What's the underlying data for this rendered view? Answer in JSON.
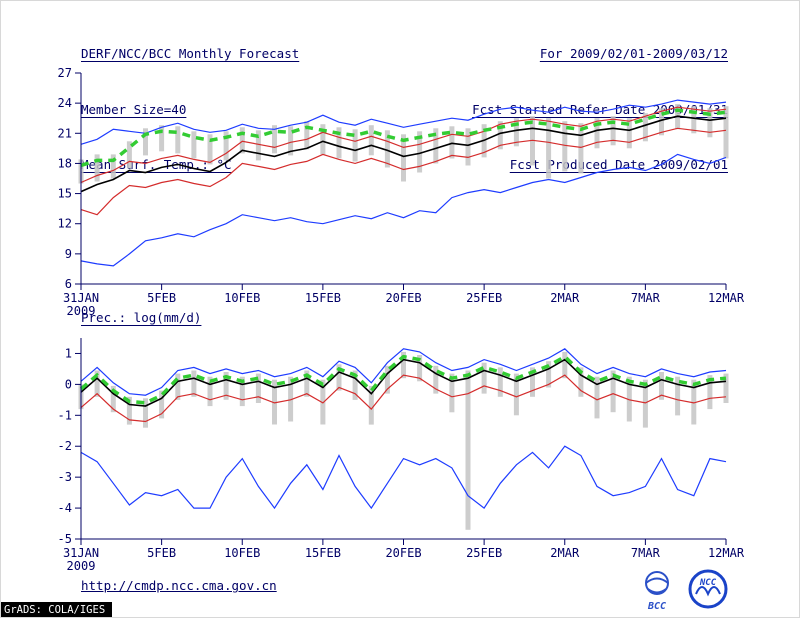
{
  "header": {
    "title": "DERF/NCC/BCC Monthly Forecast",
    "member_size": "Member Size=40",
    "for_range": "For 2009/02/01-2009/03/12",
    "fcst_started": "Fcst Started Refer Date 2009/01/31",
    "fcst_produced": "Fcst Produced Date 2009/02/01"
  },
  "footer": {
    "url": "http://cmdp.ncc.cma.gov.cn",
    "grads_credit": "GrADS: COLA/IGES",
    "logos": [
      {
        "name": "bcc-logo",
        "label": "BCC"
      },
      {
        "name": "ncc-logo",
        "label": "NCC"
      }
    ]
  },
  "colors": {
    "text": "#000066",
    "ensemble_envelope": "#1e3cff",
    "std_band": "#d42c2c",
    "ensemble_mean": "#000000",
    "observation": "#33cc33",
    "spread_bar": "#c4c4c4"
  },
  "chart_data": [
    {
      "type": "line",
      "title": "Mean Surf. Temp.: °C",
      "n_days": 41,
      "x_ticks": [
        {
          "day": 0,
          "label": "31JAN",
          "sublabel": "2009"
        },
        {
          "day": 5,
          "label": "5FEB"
        },
        {
          "day": 10,
          "label": "10FEB"
        },
        {
          "day": 15,
          "label": "15FEB"
        },
        {
          "day": 20,
          "label": "20FEB"
        },
        {
          "day": 25,
          "label": "25FEB"
        },
        {
          "day": 30,
          "label": "2MAR"
        },
        {
          "day": 35,
          "label": "7MAR"
        },
        {
          "day": 40,
          "label": "12MAR"
        }
      ],
      "ylim": [
        6,
        27
      ],
      "yticks": [
        27,
        24,
        21,
        18,
        15,
        12,
        9,
        6
      ],
      "series": [
        {
          "name": "ensemble-max",
          "color": "#1e3cff",
          "width": 1.2,
          "values": [
            19.9,
            20.4,
            21.4,
            21.2,
            21.0,
            21.6,
            22.0,
            21.4,
            21.1,
            21.3,
            21.9,
            21.5,
            21.4,
            21.8,
            22.1,
            22.8,
            22.1,
            21.8,
            22.4,
            22.0,
            21.6,
            21.9,
            22.2,
            22.5,
            22.3,
            22.9,
            23.4,
            23.6,
            23.3,
            23.1,
            23.6,
            23.2,
            23.1,
            23.4,
            23.8,
            23.6,
            23.9,
            24.3,
            24.1,
            23.9,
            24.1
          ]
        },
        {
          "name": "ensemble-min",
          "color": "#1e3cff",
          "width": 1.2,
          "values": [
            8.3,
            8.0,
            7.8,
            9.0,
            10.3,
            10.6,
            11.0,
            10.7,
            11.4,
            12.0,
            12.9,
            12.6,
            12.3,
            12.6,
            12.2,
            12.0,
            12.4,
            12.8,
            12.5,
            13.1,
            12.6,
            13.3,
            13.1,
            14.6,
            15.1,
            15.4,
            15.1,
            15.6,
            16.1,
            16.4,
            16.1,
            16.6,
            17.1,
            17.4,
            17.6,
            17.3,
            17.9,
            18.9,
            18.4,
            18.0,
            18.6
          ]
        },
        {
          "name": "mean-plus-sd",
          "color": "#d42c2c",
          "width": 1.2,
          "values": [
            16.1,
            16.8,
            17.3,
            18.2,
            18.0,
            18.5,
            18.8,
            18.4,
            18.1,
            19.0,
            20.2,
            19.9,
            19.6,
            20.1,
            20.4,
            21.1,
            20.6,
            20.2,
            20.7,
            20.2,
            19.6,
            19.9,
            20.4,
            20.9,
            20.7,
            21.2,
            21.9,
            22.2,
            22.4,
            22.2,
            21.9,
            21.7,
            22.2,
            22.4,
            22.2,
            22.7,
            23.2,
            23.6,
            23.4,
            23.2,
            23.4
          ]
        },
        {
          "name": "mean-minus-sd",
          "color": "#d42c2c",
          "width": 1.2,
          "values": [
            13.4,
            12.9,
            14.6,
            15.8,
            15.6,
            16.1,
            16.4,
            16.0,
            15.7,
            16.6,
            18.0,
            17.7,
            17.4,
            17.9,
            18.2,
            18.9,
            18.4,
            18.0,
            18.5,
            18.0,
            17.4,
            17.7,
            18.2,
            18.8,
            18.6,
            19.1,
            19.8,
            20.1,
            20.3,
            20.1,
            19.8,
            19.6,
            20.1,
            20.3,
            20.1,
            20.6,
            21.1,
            21.5,
            21.3,
            21.1,
            21.3
          ]
        },
        {
          "name": "ensemble-mean",
          "color": "#000000",
          "width": 1.6,
          "values": [
            15.2,
            15.9,
            16.4,
            17.3,
            17.1,
            17.6,
            17.9,
            17.5,
            17.2,
            18.1,
            19.3,
            19.0,
            18.7,
            19.2,
            19.5,
            20.2,
            19.7,
            19.3,
            19.8,
            19.3,
            18.7,
            19.0,
            19.5,
            20.0,
            19.8,
            20.3,
            21.0,
            21.3,
            21.5,
            21.3,
            21.0,
            20.8,
            21.3,
            21.5,
            21.3,
            21.8,
            22.3,
            22.7,
            22.5,
            22.3,
            22.5
          ]
        },
        {
          "name": "observation",
          "color": "#33cc33",
          "width": 3.5,
          "dash": "8,6",
          "values": [
            17.8,
            18.3,
            18.3,
            19.6,
            20.9,
            21.2,
            21.1,
            20.6,
            20.3,
            20.6,
            21.0,
            20.7,
            21.2,
            21.1,
            21.6,
            21.3,
            21.0,
            20.8,
            21.2,
            20.7,
            20.3,
            20.6,
            20.9,
            21.1,
            20.9,
            21.3,
            21.6,
            21.9,
            22.1,
            21.9,
            21.6,
            21.4,
            21.9,
            22.1,
            21.9,
            22.4,
            22.9,
            23.3,
            23.1,
            22.9,
            23.1
          ]
        }
      ],
      "bars": {
        "name": "ensemble-spread-bar",
        "color": "#c4c4c4",
        "high": [
          18.4,
          18.9,
          18.9,
          20.2,
          21.5,
          21.8,
          21.7,
          21.2,
          20.9,
          21.2,
          21.6,
          21.3,
          21.8,
          21.7,
          22.2,
          21.9,
          21.6,
          21.4,
          21.8,
          21.3,
          20.9,
          21.2,
          21.5,
          21.7,
          21.5,
          21.9,
          22.2,
          22.5,
          22.7,
          22.5,
          22.2,
          22.0,
          22.5,
          22.7,
          22.5,
          23.0,
          23.5,
          23.9,
          23.7,
          23.5,
          23.7
        ],
        "low": [
          16.0,
          16.2,
          16.5,
          17.5,
          18.8,
          19.2,
          19.0,
          18.5,
          17.9,
          18.3,
          19.0,
          18.3,
          19.0,
          18.8,
          19.4,
          18.9,
          18.5,
          18.2,
          18.8,
          17.6,
          16.2,
          17.1,
          18.0,
          18.5,
          17.8,
          18.6,
          19.4,
          19.7,
          17.8,
          16.5,
          17.2,
          17.0,
          19.5,
          19.8,
          19.5,
          20.2,
          20.8,
          21.4,
          21.0,
          20.6,
          18.5
        ]
      }
    },
    {
      "type": "line",
      "title": "Prec.: log(mm/d)",
      "n_days": 41,
      "x_ticks": [
        {
          "day": 0,
          "label": "31JAN",
          "sublabel": "2009"
        },
        {
          "day": 5,
          "label": "5FEB"
        },
        {
          "day": 10,
          "label": "10FEB"
        },
        {
          "day": 15,
          "label": "15FEB"
        },
        {
          "day": 20,
          "label": "20FEB"
        },
        {
          "day": 25,
          "label": "25FEB"
        },
        {
          "day": 30,
          "label": "2MAR"
        },
        {
          "day": 35,
          "label": "7MAR"
        },
        {
          "day": 40,
          "label": "12MAR"
        }
      ],
      "ylim": [
        -5,
        1.5
      ],
      "yticks": [
        1,
        0,
        -1,
        -2,
        -3,
        -4,
        -5
      ],
      "series": [
        {
          "name": "ensemble-upper",
          "color": "#1e3cff",
          "width": 1.2,
          "values": [
            0.1,
            0.55,
            0.05,
            -0.3,
            -0.35,
            -0.1,
            0.45,
            0.55,
            0.35,
            0.5,
            0.35,
            0.45,
            0.25,
            0.35,
            0.55,
            0.25,
            0.75,
            0.55,
            0.05,
            0.7,
            1.15,
            1.05,
            0.7,
            0.45,
            0.55,
            0.8,
            0.65,
            0.45,
            0.65,
            0.85,
            1.15,
            0.65,
            0.35,
            0.55,
            0.35,
            0.25,
            0.5,
            0.35,
            0.25,
            0.4,
            0.45
          ]
        },
        {
          "name": "ensemble-lower",
          "color": "#1e3cff",
          "width": 1.2,
          "values": [
            -2.2,
            -2.5,
            -3.2,
            -3.9,
            -3.5,
            -3.6,
            -3.4,
            -4.0,
            -4.0,
            -3.0,
            -2.4,
            -3.3,
            -4.0,
            -3.2,
            -2.6,
            -3.4,
            -2.3,
            -3.3,
            -4.0,
            -3.2,
            -2.4,
            -2.6,
            -2.4,
            -2.7,
            -3.6,
            -4.0,
            -3.2,
            -2.6,
            -2.2,
            -2.7,
            -2.0,
            -2.3,
            -3.3,
            -3.6,
            -3.5,
            -3.3,
            -2.4,
            -3.4,
            -3.6,
            -2.4,
            -2.5
          ]
        },
        {
          "name": "mean-minus-sd",
          "color": "#d42c2c",
          "width": 1.2,
          "values": [
            -0.75,
            -0.3,
            -0.8,
            -1.15,
            -1.2,
            -0.95,
            -0.4,
            -0.3,
            -0.5,
            -0.35,
            -0.5,
            -0.4,
            -0.6,
            -0.5,
            -0.3,
            -0.6,
            -0.1,
            -0.3,
            -0.8,
            -0.15,
            0.3,
            0.2,
            -0.15,
            -0.4,
            -0.3,
            -0.05,
            -0.2,
            -0.4,
            -0.2,
            0.0,
            0.3,
            -0.2,
            -0.5,
            -0.3,
            -0.5,
            -0.6,
            -0.35,
            -0.5,
            -0.6,
            -0.45,
            -0.4
          ]
        },
        {
          "name": "ensemble-mean",
          "color": "#000000",
          "width": 1.6,
          "values": [
            -0.25,
            0.2,
            -0.3,
            -0.65,
            -0.7,
            -0.45,
            0.1,
            0.2,
            0.0,
            0.15,
            0.0,
            0.1,
            -0.1,
            0.0,
            0.2,
            -0.1,
            0.4,
            0.2,
            -0.3,
            0.35,
            0.8,
            0.7,
            0.35,
            0.1,
            0.2,
            0.45,
            0.3,
            0.1,
            0.3,
            0.5,
            0.8,
            0.3,
            0.0,
            0.2,
            0.0,
            -0.1,
            0.15,
            0.0,
            -0.1,
            0.05,
            0.1
          ]
        },
        {
          "name": "observation",
          "color": "#33cc33",
          "width": 3.5,
          "dash": "8,6",
          "values": [
            -0.15,
            0.3,
            -0.2,
            -0.55,
            -0.6,
            -0.35,
            0.2,
            0.3,
            0.1,
            0.25,
            0.1,
            0.2,
            0.0,
            0.1,
            0.3,
            0.0,
            0.5,
            0.3,
            -0.2,
            0.45,
            0.9,
            0.8,
            0.45,
            0.2,
            0.3,
            0.55,
            0.4,
            0.2,
            0.4,
            0.6,
            0.9,
            0.4,
            0.1,
            0.3,
            0.1,
            0.0,
            0.25,
            0.1,
            0.0,
            0.15,
            0.2
          ]
        }
      ],
      "bars": {
        "name": "ensemble-spread-bar",
        "color": "#c4c4c4",
        "high": [
          0.0,
          0.45,
          -0.05,
          -0.4,
          -0.45,
          -0.2,
          0.35,
          0.45,
          0.25,
          0.4,
          0.25,
          0.35,
          0.15,
          0.25,
          0.45,
          0.15,
          0.65,
          0.45,
          -0.05,
          0.6,
          1.05,
          0.95,
          0.6,
          0.35,
          0.45,
          0.7,
          0.55,
          0.35,
          0.55,
          0.75,
          1.05,
          0.55,
          0.25,
          0.45,
          0.25,
          0.15,
          0.4,
          0.25,
          0.15,
          0.3,
          0.35
        ],
        "low": [
          -0.8,
          -0.4,
          -0.9,
          -1.3,
          -1.4,
          -1.1,
          -0.5,
          -0.4,
          -0.7,
          -0.5,
          -0.7,
          -0.6,
          -1.3,
          -1.2,
          -0.4,
          -1.3,
          -0.2,
          -0.5,
          -1.3,
          -0.3,
          0.2,
          0.1,
          -0.3,
          -0.9,
          -4.7,
          -0.3,
          -0.4,
          -1.0,
          -0.4,
          -0.1,
          0.2,
          -0.4,
          -1.1,
          -0.9,
          -1.2,
          -1.4,
          -0.5,
          -1.0,
          -1.3,
          -0.8,
          -0.6
        ]
      }
    }
  ]
}
